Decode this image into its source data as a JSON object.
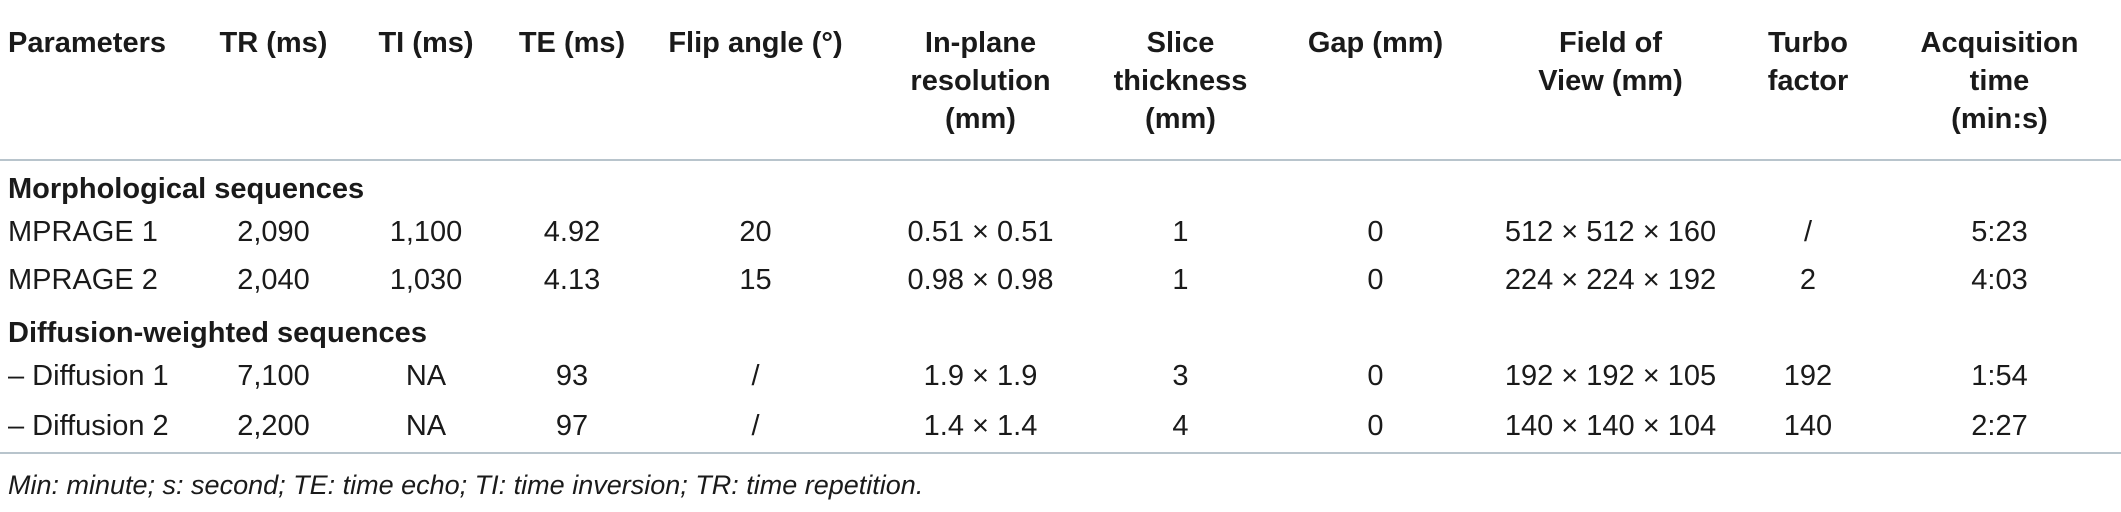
{
  "table": {
    "headers": [
      "Parameters",
      "TR (ms)",
      "TI (ms)",
      "TE (ms)",
      "Flip angle (°)",
      "In-plane resolution (mm)",
      "Slice thickness (mm)",
      "Gap (mm)",
      "Field of View (mm)",
      "Turbo factor",
      "Acquisition time (min:s)"
    ],
    "header_lines": [
      [
        "Parameters"
      ],
      [
        "TR (ms)"
      ],
      [
        "TI (ms)"
      ],
      [
        "TE (ms)"
      ],
      [
        "Flip angle (°)"
      ],
      [
        "In-plane",
        "resolution",
        "(mm)"
      ],
      [
        "Slice",
        "thickness",
        "(mm)"
      ],
      [
        "Gap (mm)"
      ],
      [
        "Field of",
        "View (mm)"
      ],
      [
        "Turbo",
        "factor"
      ],
      [
        "Acquisition",
        "time",
        "(min:s)"
      ]
    ],
    "sections": [
      {
        "title": "Morphological sequences",
        "rows": [
          [
            "MPRAGE 1",
            "2,090",
            "1,100",
            "4.92",
            "20",
            "0.51 × 0.51",
            "1",
            "0",
            "512 × 512 × 160",
            "/",
            "5:23"
          ],
          [
            "MPRAGE 2",
            "2,040",
            "1,030",
            "4.13",
            "15",
            "0.98 × 0.98",
            "1",
            "0",
            "224 × 224 × 192",
            "2",
            "4:03"
          ]
        ]
      },
      {
        "title": "Diffusion-weighted sequences",
        "rows": [
          [
            "– Diffusion 1",
            "7,100",
            "NA",
            "93",
            "/",
            "1.9 × 1.9",
            "3",
            "0",
            "192 × 192 × 105",
            "192",
            "1:54"
          ],
          [
            "– Diffusion 2",
            "2,200",
            "NA",
            "97",
            "/",
            "1.4 × 1.4",
            "4",
            "0",
            "140 × 140 × 104",
            "140",
            "2:27"
          ]
        ]
      }
    ]
  },
  "footnote": "Min: minute; s: second; TE: time echo; TI: time inversion; TR: time repetition.",
  "colors": {
    "rule": "#b8c4cc",
    "text": "#1a1a1a"
  }
}
